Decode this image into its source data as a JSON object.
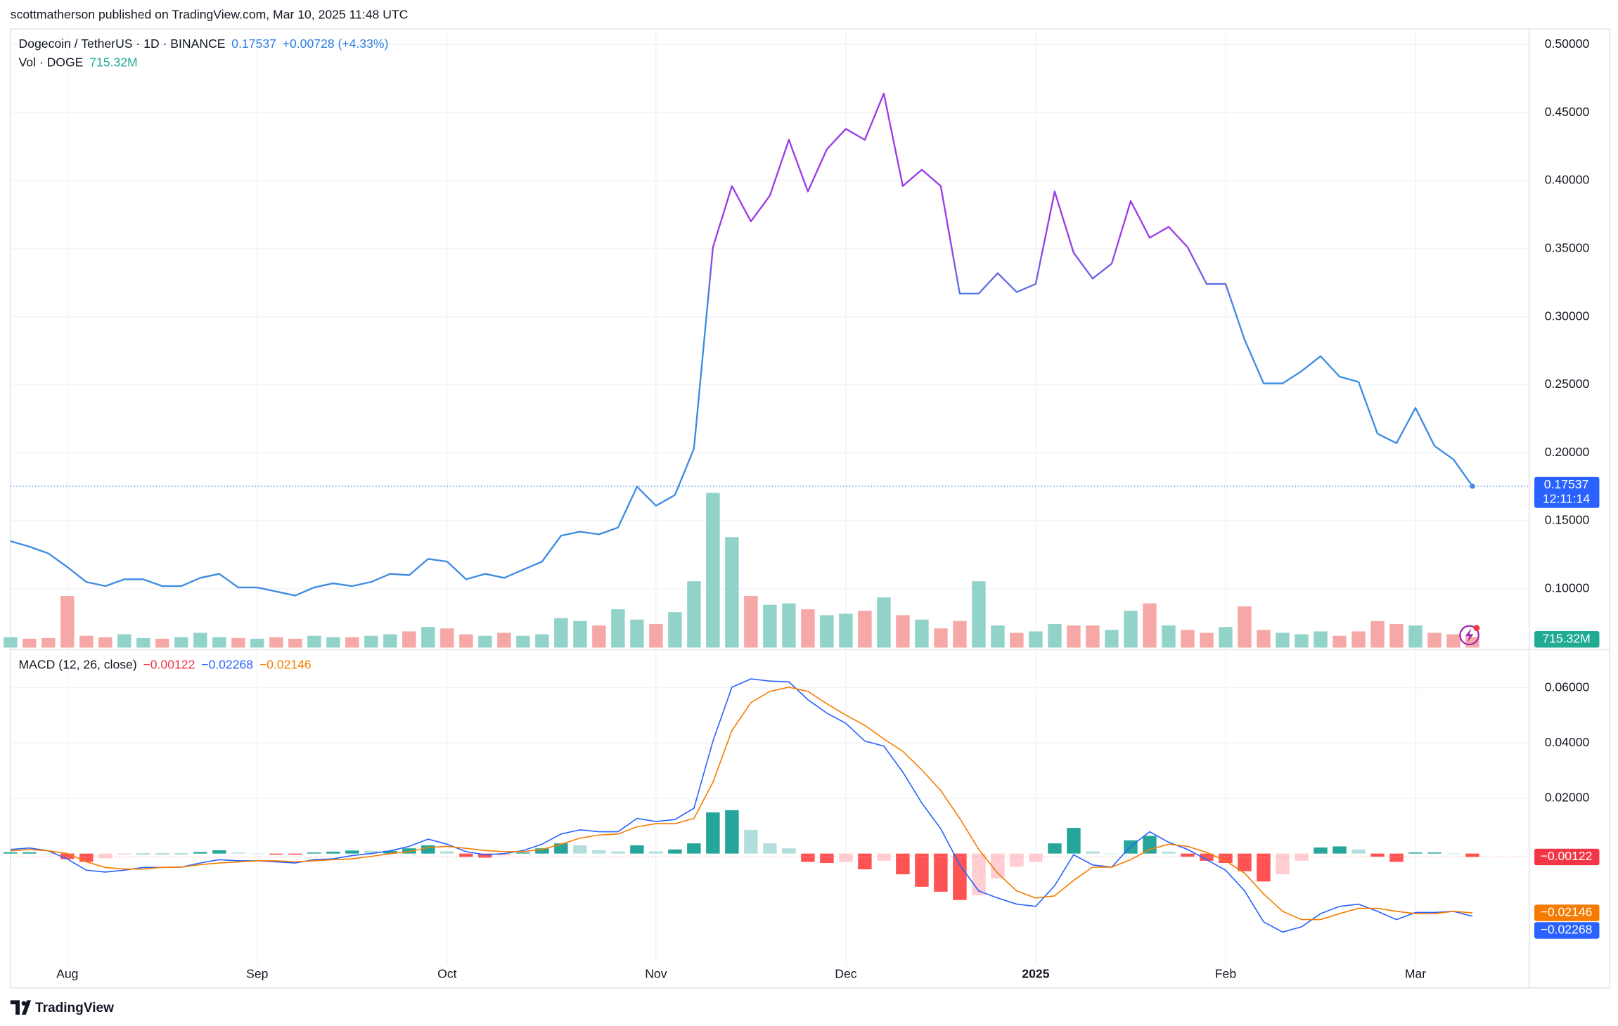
{
  "header": {
    "attribution": "scottmatherson published on TradingView.com, Mar 10, 2025 11:48 UTC",
    "footer": "TradingView"
  },
  "chart_data": [
    {
      "type": "line",
      "title": "Dogecoin / TetherUS · 1D · BINANCE",
      "change": "+0.00728 (+4.33%)",
      "countdown": "12:11:14",
      "categories": [
        null,
        null,
        null,
        "Aug",
        null,
        null,
        null,
        null,
        null,
        null,
        null,
        null,
        null,
        "Sep",
        null,
        null,
        null,
        null,
        null,
        null,
        null,
        null,
        null,
        "Oct",
        null,
        null,
        null,
        null,
        null,
        null,
        null,
        null,
        null,
        null,
        "Nov",
        null,
        null,
        null,
        null,
        null,
        null,
        null,
        null,
        null,
        "Dec",
        null,
        null,
        null,
        null,
        null,
        null,
        null,
        null,
        null,
        "2025",
        null,
        null,
        null,
        null,
        null,
        null,
        null,
        null,
        null,
        "Feb",
        null,
        null,
        null,
        null,
        null,
        null,
        null,
        null,
        null,
        "Mar",
        null,
        null,
        null
      ],
      "series": [
        {
          "colors": [
            "#3d8ce2",
            "#9b3be6"
          ],
          "last_label": "0.17537",
          "values": [
            0.135,
            0.131,
            0.126,
            0.116,
            0.105,
            0.102,
            0.107,
            0.107,
            0.102,
            0.102,
            0.108,
            0.111,
            0.101,
            0.101,
            0.098,
            0.095,
            0.101,
            0.104,
            0.102,
            0.105,
            0.111,
            0.11,
            0.122,
            0.12,
            0.107,
            0.111,
            0.108,
            0.114,
            0.12,
            0.139,
            0.142,
            0.14,
            0.145,
            0.175,
            0.161,
            0.169,
            0.203,
            0.351,
            0.396,
            0.37,
            0.389,
            0.43,
            0.392,
            0.423,
            0.438,
            0.43,
            0.464,
            0.396,
            0.408,
            0.396,
            0.317,
            0.317,
            0.332,
            0.318,
            0.324,
            0.392,
            0.347,
            0.328,
            0.339,
            0.385,
            0.358,
            0.366,
            0.351,
            0.324,
            0.324,
            0.283,
            0.251,
            0.251,
            0.26,
            0.271,
            0.256,
            0.252,
            0.214,
            0.207,
            0.233,
            0.205,
            0.195,
            0.17537
          ]
        }
      ],
      "volume": {
        "name": "Vol · DOGE",
        "last_label": "715.32M",
        "colors": [
          "#92d3c9",
          "#f5a8a6"
        ],
        "values": [
          700,
          600,
          650,
          3500,
          800,
          700,
          900,
          650,
          600,
          700,
          1000,
          700,
          650,
          600,
          700,
          600,
          800,
          700,
          700,
          800,
          900,
          1100,
          1400,
          1300,
          900,
          800,
          1000,
          800,
          900,
          2000,
          1800,
          1500,
          2600,
          1900,
          1600,
          2400,
          4500,
          10500,
          7500,
          3500,
          2900,
          3000,
          2600,
          2200,
          2300,
          2500,
          3400,
          2200,
          1900,
          1300,
          1800,
          4500,
          1500,
          1000,
          1100,
          1600,
          1500,
          1500,
          1200,
          2500,
          3000,
          1500,
          1200,
          1000,
          1400,
          2800,
          1200,
          1000,
          900,
          1100,
          800,
          1100,
          1800,
          1600,
          1500,
          1000,
          900,
          715.32
        ]
      },
      "ylim": [
        0.0568,
        0.51
      ],
      "yticks": [
        {
          "value": 0.1,
          "label": "0.10000"
        },
        {
          "value": 0.15,
          "label": "0.15000"
        },
        {
          "value": 0.2,
          "label": "0.20000"
        },
        {
          "value": 0.25,
          "label": "0.25000"
        },
        {
          "value": 0.3,
          "label": "0.30000"
        },
        {
          "value": 0.35,
          "label": "0.35000"
        },
        {
          "value": 0.4,
          "label": "0.40000"
        },
        {
          "value": 0.45,
          "label": "0.45000"
        },
        {
          "value": 0.5,
          "label": "0.50000"
        }
      ],
      "grid": true
    },
    {
      "type": "macd",
      "title": "MACD (12, 26, close)",
      "histogram": {
        "last_label": "−0.00122",
        "colors": [
          "#26a69a",
          "#b2dfdb",
          "#ff5252",
          "#ffcdd2"
        ],
        "values": [
          0.0005,
          0.0005,
          0,
          -0.002,
          -0.003,
          -0.0017,
          -0.0004,
          0,
          0,
          0,
          0.0006,
          0.0012,
          0.0004,
          0,
          -0.0004,
          -0.0004,
          0.0004,
          0.0007,
          0.0011,
          0.001,
          0.001,
          0.0019,
          0.003,
          0.0008,
          -0.0012,
          -0.0015,
          -0.0007,
          0.0004,
          0.0019,
          0.0037,
          0.003,
          0.0012,
          0.0008,
          0.003,
          0.0008,
          0.0015,
          0.0037,
          0.0149,
          0.0157,
          0.0086,
          0.0037,
          0.0019,
          -0.003,
          -0.0034,
          -0.003,
          -0.0057,
          -0.0026,
          -0.0075,
          -0.012,
          -0.0138,
          -0.0168,
          -0.015,
          -0.009,
          -0.0048,
          -0.003,
          0.0037,
          0.0093,
          0.0008,
          0,
          0.0048,
          0.0064,
          0.0007,
          -0.0011,
          -0.0026,
          -0.0034,
          -0.0064,
          -0.0101,
          -0.0075,
          -0.0026,
          0.0022,
          0.0026,
          0.0015,
          -0.0011,
          -0.003,
          0.0004,
          0.0004,
          0,
          -0.00122
        ]
      },
      "series": [
        {
          "color": "#2962ff",
          "last_label": "−0.02268",
          "values": [
            0.0015,
            0.002,
            0.001,
            -0.002,
            -0.006,
            -0.0067,
            -0.006,
            -0.005,
            -0.005,
            -0.0049,
            -0.0034,
            -0.0022,
            -0.0026,
            -0.0026,
            -0.003,
            -0.0034,
            -0.0022,
            -0.0019,
            -0.0007,
            0,
            0.001,
            0.0026,
            0.0052,
            0.0034,
            0.0007,
            -0.0004,
            0,
            0.0011,
            0.0034,
            0.0071,
            0.0086,
            0.0079,
            0.0079,
            0.0127,
            0.0116,
            0.0123,
            0.0164,
            0.0407,
            0.0602,
            0.0632,
            0.0624,
            0.0621,
            0.0557,
            0.0508,
            0.0471,
            0.0407,
            0.0389,
            0.0295,
            0.0183,
            0.009,
            -0.0041,
            -0.0135,
            -0.0161,
            -0.0183,
            -0.0191,
            -0.0116,
            -0.0004,
            -0.0041,
            -0.0049,
            0.0026,
            0.0079,
            0.0041,
            0.0015,
            -0.0022,
            -0.006,
            -0.0135,
            -0.0247,
            -0.0284,
            -0.0265,
            -0.0217,
            -0.0191,
            -0.0183,
            -0.0209,
            -0.0239,
            -0.0213,
            -0.0213,
            -0.0209,
            -0.02268
          ]
        },
        {
          "color": "#f57c00",
          "last_label": "−0.02146",
          "values": [
            0.001,
            0.0015,
            0.001,
            0,
            -0.003,
            -0.005,
            -0.0056,
            -0.0056,
            -0.005,
            -0.0049,
            -0.004,
            -0.0034,
            -0.003,
            -0.0026,
            -0.0026,
            -0.003,
            -0.0026,
            -0.0022,
            -0.0019,
            -0.001,
            0,
            0.0007,
            0.0022,
            0.0026,
            0.0019,
            0.0011,
            0.0007,
            0.0007,
            0.0015,
            0.0034,
            0.0056,
            0.0067,
            0.0071,
            0.0097,
            0.0108,
            0.0108,
            0.0127,
            0.0258,
            0.0445,
            0.0546,
            0.0587,
            0.0602,
            0.0587,
            0.0542,
            0.0501,
            0.0464,
            0.0415,
            0.037,
            0.0303,
            0.0228,
            0.0127,
            0.0015,
            -0.0071,
            -0.0135,
            -0.0161,
            -0.0153,
            -0.0097,
            -0.0049,
            -0.0049,
            -0.0022,
            0.0015,
            0.0034,
            0.0026,
            0.0004,
            -0.0026,
            -0.0071,
            -0.0146,
            -0.0209,
            -0.0239,
            -0.0239,
            -0.0217,
            -0.0198,
            -0.0198,
            -0.0209,
            -0.0217,
            -0.0217,
            -0.0209,
            -0.02146
          ]
        }
      ],
      "ylim": [
        -0.04,
        0.0723
      ],
      "yticks": [
        {
          "value": 0.02,
          "label": "0.02000"
        },
        {
          "value": 0.04,
          "label": "0.04000"
        },
        {
          "value": 0.06,
          "label": "0.06000"
        }
      ],
      "grid": true
    }
  ]
}
